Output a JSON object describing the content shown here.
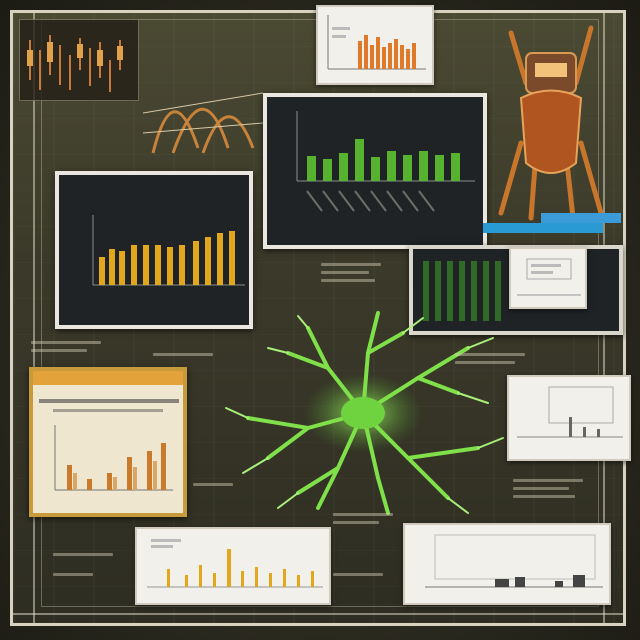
{
  "panels": {
    "top_center": {
      "title": ""
    },
    "center_dark": {
      "title_line1": "",
      "title_line2": "",
      "footer": ""
    },
    "left_dark": {
      "title": ""
    },
    "left_gold": {
      "title": ""
    },
    "right_mid": {
      "title": ""
    },
    "bottom_center": {
      "title": ""
    },
    "bottom_right": {
      "title": ""
    }
  },
  "colors": {
    "frame": "#d8d3c0",
    "green_bar": "#57b22f",
    "gold_bar": "#e3a71d",
    "orange_bar": "#e07a2b",
    "tree_green": "#7fe04a"
  },
  "icons": [
    "neuron-tree-icon",
    "robot-figure-icon"
  ]
}
